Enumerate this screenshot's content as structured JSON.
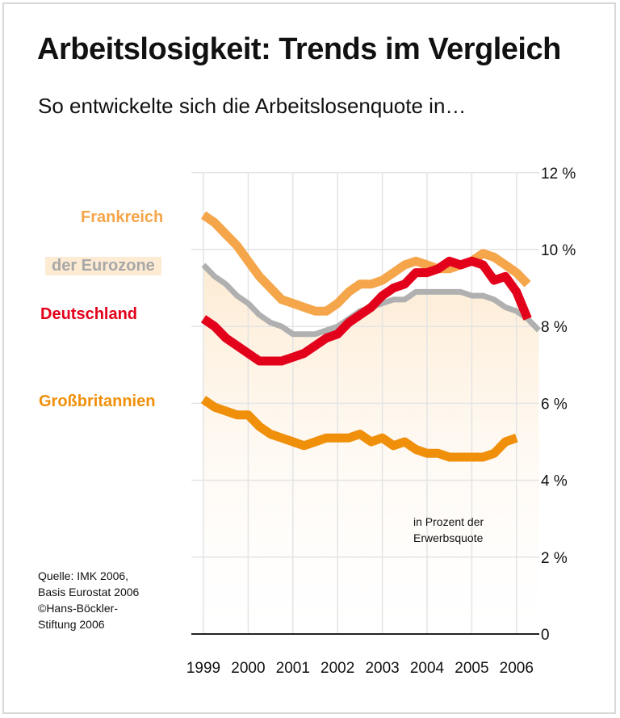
{
  "title": "Arbeitslosigkeit: Trends im Vergleich",
  "subtitle": "So entwickelte sich die Arbeitslosenquote in…",
  "source_lines": [
    "Quelle: IMK 2006,",
    "Basis Eurostat 2006",
    "©Hans-Böckler-",
    "Stiftung 2006"
  ],
  "unit_note_lines": [
    "in Prozent der",
    "Erwerbsquote"
  ],
  "chart_data": {
    "type": "line",
    "title": "Arbeitslosigkeit: Trends im Vergleich",
    "subtitle": "So entwickelte sich die Arbeitslosenquote in…",
    "ylabel": "in Prozent der Erwerbsquote",
    "ylim": [
      0,
      12
    ],
    "xlim": [
      1999,
      2006.3
    ],
    "y_ticks": [
      0,
      2,
      4,
      6,
      8,
      10,
      12
    ],
    "y_tick_labels": [
      "0",
      "2 %",
      "4 %",
      "6 %",
      "8 %",
      "10 %",
      "12 %"
    ],
    "x_ticks": [
      1999,
      2000,
      2001,
      2002,
      2003,
      2004,
      2005,
      2006
    ],
    "x_tick_labels": [
      "1999",
      "2000",
      "2001",
      "2002",
      "2003",
      "2004",
      "2005",
      "2006"
    ],
    "grid": true,
    "y_axis_side": "right",
    "series": [
      {
        "name": "Frankreich",
        "color": "#f5a54a",
        "x_start": 1999,
        "x_step": 0.25,
        "values": [
          10.9,
          10.7,
          10.4,
          10.1,
          9.7,
          9.3,
          9.0,
          8.7,
          8.6,
          8.5,
          8.4,
          8.4,
          8.6,
          8.9,
          9.1,
          9.1,
          9.2,
          9.4,
          9.6,
          9.7,
          9.6,
          9.5,
          9.5,
          9.6,
          9.7,
          9.9,
          9.8,
          9.6,
          9.4,
          9.1
        ]
      },
      {
        "name": "der Eurozone",
        "color": "#b0b0b0",
        "x_start": 1999,
        "x_step": 0.25,
        "values": [
          9.6,
          9.3,
          9.1,
          8.8,
          8.6,
          8.3,
          8.1,
          8.0,
          7.8,
          7.8,
          7.8,
          7.9,
          8.0,
          8.2,
          8.4,
          8.5,
          8.6,
          8.7,
          8.7,
          8.9,
          8.9,
          8.9,
          8.9,
          8.9,
          8.8,
          8.8,
          8.7,
          8.5,
          8.4,
          8.2,
          7.9
        ]
      },
      {
        "name": "Deutschland",
        "color": "#e3001b",
        "x_start": 1999,
        "x_step": 0.25,
        "values": [
          8.2,
          8.0,
          7.7,
          7.5,
          7.3,
          7.1,
          7.1,
          7.1,
          7.2,
          7.3,
          7.5,
          7.7,
          7.8,
          8.1,
          8.3,
          8.5,
          8.8,
          9.0,
          9.1,
          9.4,
          9.4,
          9.5,
          9.7,
          9.6,
          9.7,
          9.6,
          9.2,
          9.3,
          8.9,
          8.2
        ]
      },
      {
        "name": "Großbritannien",
        "color": "#f0900a",
        "x_start": 1999,
        "x_step": 0.25,
        "values": [
          6.1,
          5.9,
          5.8,
          5.7,
          5.7,
          5.4,
          5.2,
          5.1,
          5.0,
          4.9,
          5.0,
          5.1,
          5.1,
          5.1,
          5.2,
          5.0,
          5.1,
          4.9,
          5.0,
          4.8,
          4.7,
          4.7,
          4.6,
          4.6,
          4.6,
          4.6,
          4.7,
          5.0,
          5.1
        ]
      }
    ],
    "area_fill_color": "#fdebd3"
  }
}
